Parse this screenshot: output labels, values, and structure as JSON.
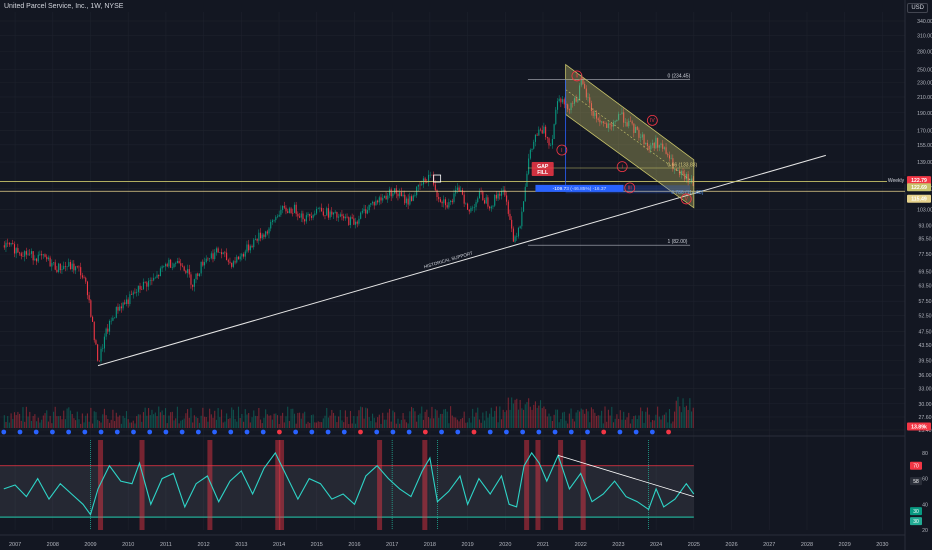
{
  "header": {
    "title": "United Parcel Service, Inc., 1W, NYSE",
    "currency": "USD"
  },
  "chart_data": {
    "type": "line",
    "price_axis": [
      340.0,
      310.0,
      280.0,
      250.0,
      230.0,
      210.0,
      190.0,
      170.0,
      155.0,
      139.0,
      117.5,
      103.0,
      93.0,
      85.5,
      77.5,
      69.5,
      63.5,
      57.5,
      52.5,
      47.5,
      43.5,
      39.5,
      36.0,
      33.0,
      30.0,
      27.6,
      25.4
    ],
    "price_tags": [
      {
        "label": "Weekly",
        "value": "122.79",
        "color": "#f23645"
      },
      {
        "label": "",
        "value": "122.69",
        "color": "#c8c36a"
      },
      {
        "label": "",
        "value": "115.49",
        "color": "#e6d28c"
      },
      {
        "label": "",
        "value": "13.89k",
        "color": "#f23645"
      }
    ],
    "years": [
      "2007",
      "2008",
      "2009",
      "2010",
      "2011",
      "2012",
      "2013",
      "2014",
      "2015",
      "2016",
      "2017",
      "2018",
      "2019",
      "2020",
      "2021",
      "2022",
      "2023",
      "2024",
      "2025",
      "2026",
      "2027",
      "2028",
      "2029",
      "2030"
    ],
    "annotations": {
      "fib_0": "0 (234.45)",
      "fib_066": "0.66 (133.83)",
      "fib_1": "1 (82.00)",
      "fib_078": "0.786 (114.63)",
      "measure": "-109.73 (-46.85%) -16.37",
      "gap": [
        "GAP",
        "FILL"
      ],
      "support": "HISTORICAL SUPPORT",
      "waves": [
        "I",
        "II",
        "III",
        "IV",
        "V",
        "I"
      ]
    },
    "series": [
      {
        "name": "price",
        "points": [
          [
            2006.7,
            82
          ],
          [
            2007.0,
            80
          ],
          [
            2007.4,
            77
          ],
          [
            2007.8,
            75
          ],
          [
            2008.1,
            71
          ],
          [
            2008.4,
            72
          ],
          [
            2008.7,
            70
          ],
          [
            2008.9,
            62
          ],
          [
            2009.1,
            44
          ],
          [
            2009.2,
            39
          ],
          [
            2009.4,
            47
          ],
          [
            2009.7,
            55
          ],
          [
            2010.0,
            58
          ],
          [
            2010.4,
            64
          ],
          [
            2010.7,
            66
          ],
          [
            2011.0,
            73
          ],
          [
            2011.4,
            74
          ],
          [
            2011.7,
            64
          ],
          [
            2012.0,
            75
          ],
          [
            2012.4,
            79
          ],
          [
            2012.7,
            73
          ],
          [
            2013.0,
            77
          ],
          [
            2013.4,
            86
          ],
          [
            2013.7,
            90
          ],
          [
            2014.0,
            102
          ],
          [
            2014.4,
            103
          ],
          [
            2014.7,
            97
          ],
          [
            2015.0,
            104
          ],
          [
            2015.4,
            99
          ],
          [
            2015.7,
            97
          ],
          [
            2016.0,
            95
          ],
          [
            2016.4,
            106
          ],
          [
            2016.7,
            110
          ],
          [
            2017.0,
            116
          ],
          [
            2017.4,
            108
          ],
          [
            2017.7,
            118
          ],
          [
            2018.0,
            129
          ],
          [
            2018.2,
            112
          ],
          [
            2018.5,
            106
          ],
          [
            2018.8,
            119
          ],
          [
            2019.0,
            100
          ],
          [
            2019.3,
            113
          ],
          [
            2019.6,
            106
          ],
          [
            2019.9,
            117
          ],
          [
            2020.1,
            100
          ],
          [
            2020.2,
            84
          ],
          [
            2020.4,
            96
          ],
          [
            2020.6,
            140
          ],
          [
            2020.8,
            165
          ],
          [
            2021.0,
            170
          ],
          [
            2021.2,
            155
          ],
          [
            2021.4,
            215
          ],
          [
            2021.6,
            195
          ],
          [
            2021.9,
            210
          ],
          [
            2022.0,
            230
          ],
          [
            2022.3,
            190
          ],
          [
            2022.5,
            180
          ],
          [
            2022.8,
            170
          ],
          [
            2023.0,
            190
          ],
          [
            2023.3,
            175
          ],
          [
            2023.6,
            163
          ],
          [
            2023.8,
            152
          ],
          [
            2024.0,
            158
          ],
          [
            2024.3,
            145
          ],
          [
            2024.5,
            130
          ],
          [
            2024.8,
            125
          ],
          [
            2025.0,
            120
          ]
        ]
      },
      {
        "name": "oscillator",
        "points": [
          [
            2006.7,
            52
          ],
          [
            2007.0,
            55
          ],
          [
            2007.3,
            46
          ],
          [
            2007.6,
            60
          ],
          [
            2007.9,
            44
          ],
          [
            2008.2,
            56
          ],
          [
            2008.5,
            48
          ],
          [
            2008.8,
            40
          ],
          [
            2009.0,
            32
          ],
          [
            2009.2,
            52
          ],
          [
            2009.5,
            70
          ],
          [
            2009.8,
            58
          ],
          [
            2010.1,
            56
          ],
          [
            2010.3,
            72
          ],
          [
            2010.6,
            40
          ],
          [
            2010.9,
            60
          ],
          [
            2011.2,
            64
          ],
          [
            2011.5,
            38
          ],
          [
            2011.8,
            56
          ],
          [
            2012.1,
            62
          ],
          [
            2012.4,
            42
          ],
          [
            2012.7,
            58
          ],
          [
            2013.0,
            66
          ],
          [
            2013.3,
            48
          ],
          [
            2013.6,
            68
          ],
          [
            2013.9,
            80
          ],
          [
            2014.2,
            62
          ],
          [
            2014.5,
            44
          ],
          [
            2014.8,
            60
          ],
          [
            2015.1,
            56
          ],
          [
            2015.4,
            44
          ],
          [
            2015.7,
            48
          ],
          [
            2016.0,
            40
          ],
          [
            2016.3,
            62
          ],
          [
            2016.6,
            70
          ],
          [
            2016.9,
            60
          ],
          [
            2017.2,
            52
          ],
          [
            2017.5,
            46
          ],
          [
            2017.8,
            66
          ],
          [
            2018.0,
            76
          ],
          [
            2018.2,
            42
          ],
          [
            2018.5,
            50
          ],
          [
            2018.8,
            62
          ],
          [
            2019.0,
            40
          ],
          [
            2019.3,
            60
          ],
          [
            2019.6,
            48
          ],
          [
            2019.9,
            62
          ],
          [
            2020.1,
            40
          ],
          [
            2020.3,
            38
          ],
          [
            2020.5,
            70
          ],
          [
            2020.7,
            80
          ],
          [
            2020.9,
            72
          ],
          [
            2021.1,
            58
          ],
          [
            2021.4,
            78
          ],
          [
            2021.7,
            52
          ],
          [
            2022.0,
            64
          ],
          [
            2022.3,
            42
          ],
          [
            2022.6,
            48
          ],
          [
            2022.9,
            58
          ],
          [
            2023.2,
            46
          ],
          [
            2023.5,
            42
          ],
          [
            2023.8,
            36
          ],
          [
            2024.0,
            52
          ],
          [
            2024.2,
            38
          ],
          [
            2024.5,
            44
          ],
          [
            2024.8,
            56
          ],
          [
            2025.0,
            48
          ]
        ]
      }
    ],
    "osc_axis": [
      80,
      60,
      40,
      20
    ],
    "osc_tags": [
      {
        "value": "70",
        "color": "#f23645"
      },
      {
        "value": "58",
        "color": "#2a2e39"
      },
      {
        "value": "30",
        "color": "#089981"
      },
      {
        "value": "30",
        "color": "#22ab94"
      }
    ]
  }
}
